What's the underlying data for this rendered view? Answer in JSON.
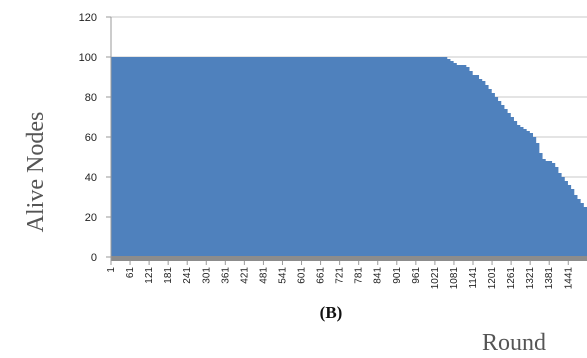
{
  "chart_data": {
    "type": "area",
    "panel_label": "(B)",
    "xlabel": "Round",
    "ylabel": "Alive Nodes",
    "ylim": [
      0,
      120
    ],
    "yticks": [
      0,
      20,
      40,
      60,
      80,
      100,
      120
    ],
    "xticks": [
      "1",
      "61",
      "121",
      "181",
      "241",
      "301",
      "361",
      "421",
      "481",
      "541",
      "601",
      "661",
      "721",
      "781",
      "841",
      "901",
      "961",
      "1021",
      "1081",
      "1141",
      "1201",
      "1261",
      "1321",
      "1381",
      "1441"
    ],
    "grid": true,
    "fill_color": "#4f81bd",
    "baseline_color": "#8c8c8c",
    "series": [
      {
        "x": [
          1,
          1050,
          1060,
          1070,
          1080,
          1090,
          1100,
          1110,
          1120,
          1130,
          1140,
          1150,
          1160,
          1170,
          1180,
          1190,
          1200,
          1210,
          1220,
          1230,
          1240,
          1250,
          1260,
          1270,
          1280,
          1290,
          1300,
          1310,
          1320,
          1330,
          1340,
          1350,
          1360,
          1370,
          1380,
          1390,
          1400,
          1410,
          1420,
          1430,
          1440,
          1450,
          1460,
          1470,
          1480,
          1490,
          1500
        ],
        "y": [
          100,
          100,
          99,
          98,
          97,
          96,
          96,
          96,
          95,
          93,
          91,
          91,
          89,
          88,
          86,
          84,
          82,
          80,
          78,
          76,
          74,
          72,
          70,
          68,
          66,
          65,
          64,
          63,
          62,
          60,
          57,
          52,
          49,
          48,
          48,
          47,
          45,
          42,
          40,
          38,
          36,
          34,
          31,
          29,
          27,
          25,
          24
        ]
      }
    ]
  }
}
